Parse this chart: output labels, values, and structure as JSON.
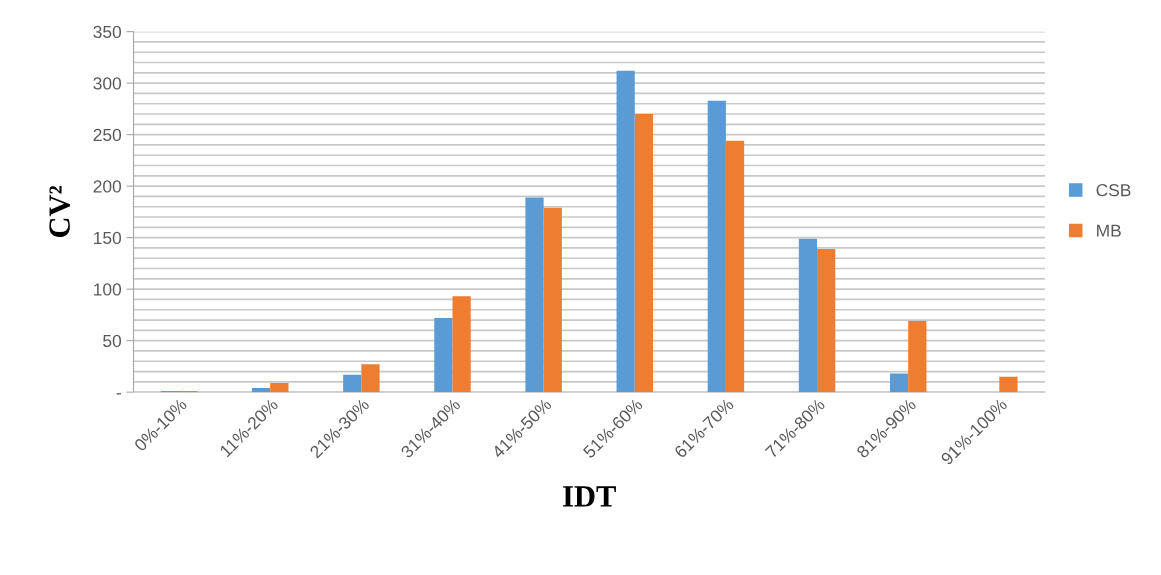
{
  "chart_data": {
    "type": "bar",
    "xlabel": "IDT",
    "ylabel": "CV²",
    "categories": [
      "0%-10%",
      "11%-20%",
      "21%-30%",
      "31%-40%",
      "41%-50%",
      "51%-60%",
      "61%-70%",
      "71%-80%",
      "81%-90%",
      "91%-100%"
    ],
    "series": [
      {
        "name": "CSB",
        "color": "#5b9bd5",
        "values": [
          1,
          4,
          17,
          72,
          189,
          312,
          283,
          149,
          18,
          0
        ]
      },
      {
        "name": "MB",
        "color": "#ed7d31",
        "values": [
          1,
          9,
          27,
          93,
          179,
          270,
          244,
          139,
          69,
          15
        ]
      }
    ],
    "ylim": [
      0,
      350
    ],
    "yticks": [
      {
        "value": 0,
        "label": "-"
      },
      {
        "value": 10,
        "label": null
      },
      {
        "value": 20,
        "label": null
      },
      {
        "value": 30,
        "label": null
      },
      {
        "value": 40,
        "label": null
      },
      50,
      {
        "value": 60,
        "label": null
      },
      {
        "value": 70,
        "label": null
      },
      {
        "value": 80,
        "label": null
      },
      {
        "value": 90,
        "label": null
      },
      100,
      {
        "value": 110,
        "label": null
      },
      {
        "value": 120,
        "label": null
      },
      {
        "value": 130,
        "label": null
      },
      {
        "value": 140,
        "label": null
      },
      150,
      {
        "value": 160,
        "label": null
      },
      {
        "value": 170,
        "label": null
      },
      {
        "value": 180,
        "label": null
      },
      {
        "value": 190,
        "label": null
      },
      200,
      {
        "value": 210,
        "label": null
      },
      {
        "value": 220,
        "label": null
      },
      {
        "value": 230,
        "label": null
      },
      {
        "value": 240,
        "label": null
      },
      250,
      {
        "value": 260,
        "label": null
      },
      {
        "value": 270,
        "label": null
      },
      {
        "value": 280,
        "label": null
      },
      {
        "value": 290,
        "label": null
      },
      300,
      {
        "value": 310,
        "label": null
      },
      {
        "value": 320,
        "label": null
      },
      {
        "value": 330,
        "label": null
      },
      {
        "value": 340,
        "label": null
      },
      350
    ],
    "grid": "y",
    "legend": "right"
  }
}
